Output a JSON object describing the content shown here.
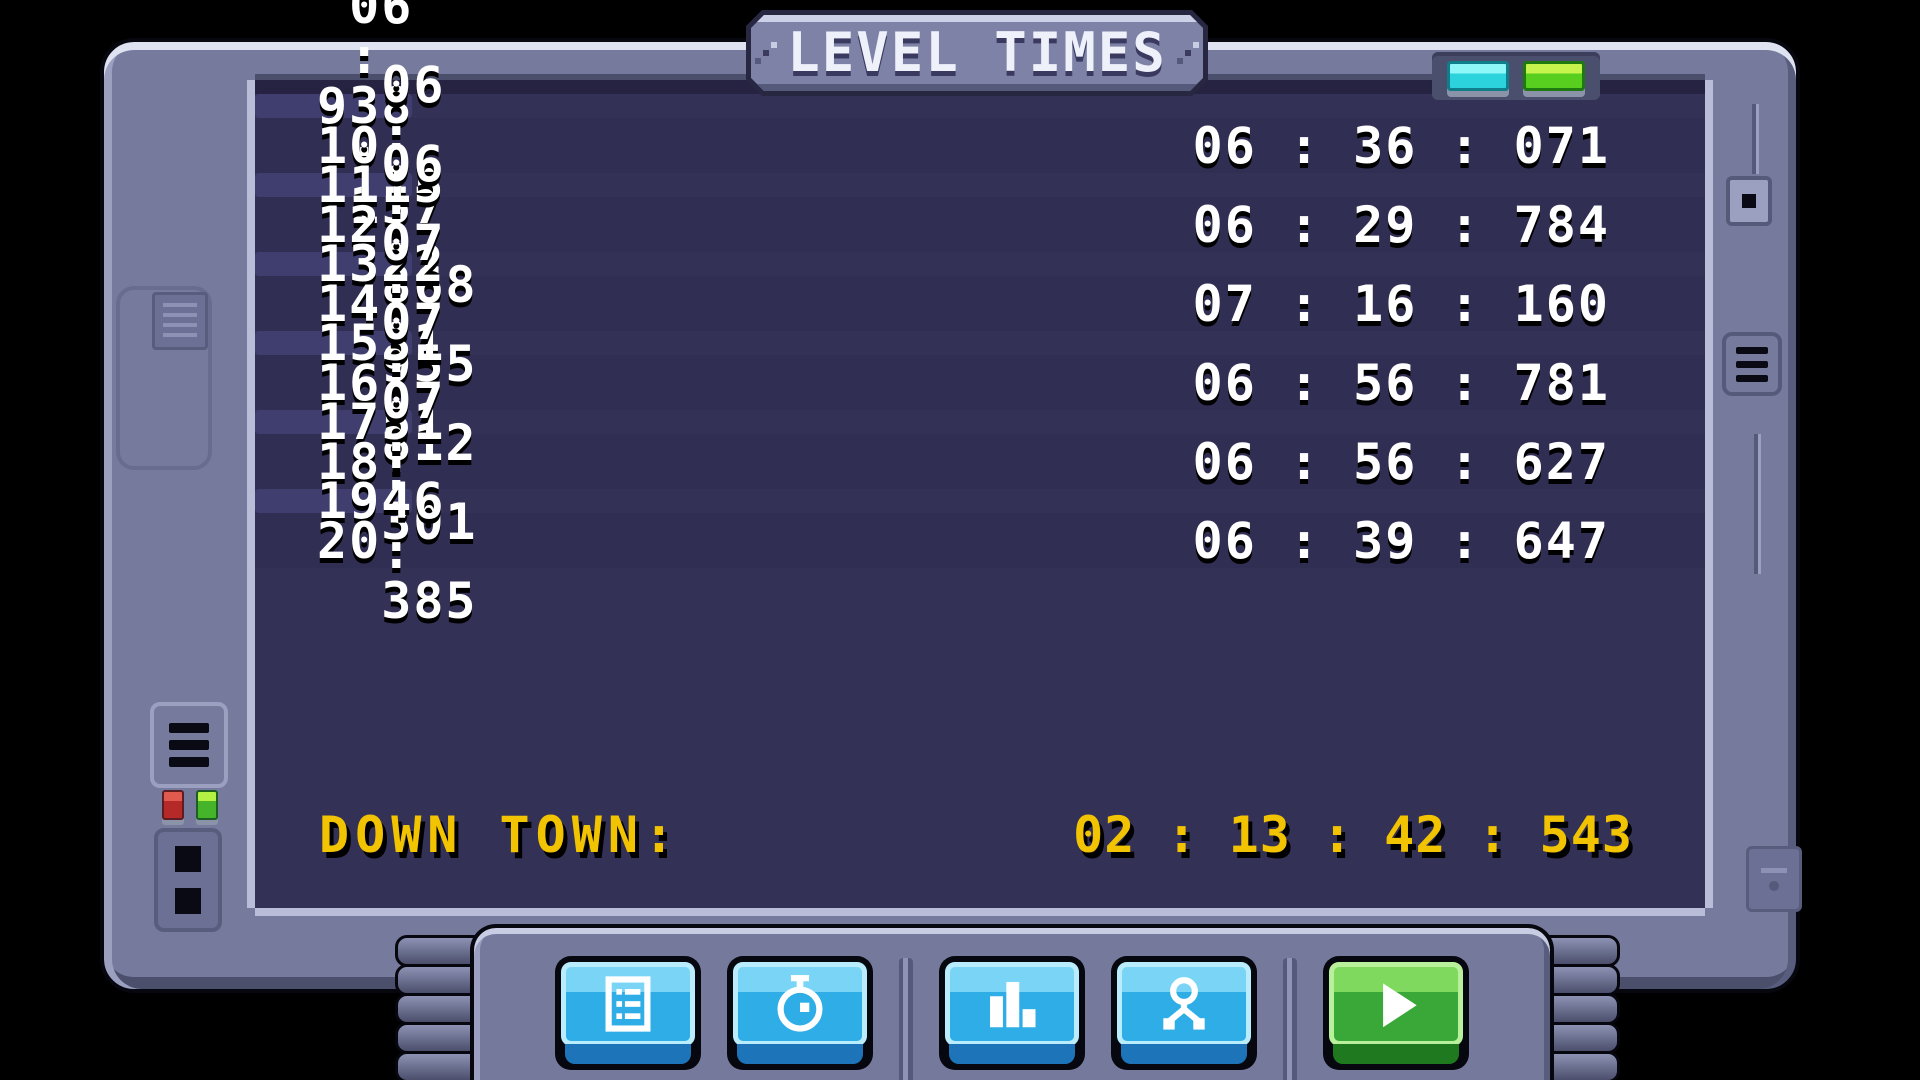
{
  "title": "LEVEL TIMES",
  "screen": {
    "rows": [
      {
        "level": "9",
        "time": "06 : 38 : 157"
      },
      {
        "level": "10",
        "time": "06 : 36 : 071"
      },
      {
        "level": "11",
        "time": "06 : 15 : 868"
      },
      {
        "level": "12",
        "time": "06 : 29 : 784"
      },
      {
        "level": "13",
        "time": "06 : 22 : 955"
      },
      {
        "level": "14",
        "time": "07 : 16 : 160"
      },
      {
        "level": "15",
        "time": "07 : 31 : 812"
      },
      {
        "level": "16",
        "time": "06 : 56 : 781"
      },
      {
        "level": "17",
        "time": "07 : 51 : 301"
      },
      {
        "level": "18",
        "time": "06 : 56 : 627"
      },
      {
        "level": "19",
        "time": "07 : 46 : 385"
      },
      {
        "level": "20",
        "time": "06 : 39 : 647"
      }
    ],
    "total_label": "DOWN TOWN:",
    "total_time": "02 : 13 : 42 : 543"
  },
  "toolbar": {
    "buttons": [
      {
        "id": "levels-list",
        "icon": "list-icon"
      },
      {
        "id": "level-times",
        "icon": "stopwatch-icon"
      },
      {
        "id": "statistics",
        "icon": "bar-chart-icon"
      },
      {
        "id": "progress-tree",
        "icon": "skill-tree-icon"
      },
      {
        "id": "play",
        "icon": "play-icon"
      }
    ]
  },
  "indicators": [
    {
      "id": "status-cyan",
      "color": "#44e4ee"
    },
    {
      "id": "status-green",
      "color": "#72e01e"
    }
  ],
  "colors": {
    "accent_yellow": "#f2c300",
    "row_light": "#3f3e6e",
    "row_dark": "#312e54",
    "screen_bg": "#343156",
    "frame": "#767b9e",
    "button_blue": "#2fade6",
    "button_green": "#3aa838",
    "text_white": "#ffffff"
  }
}
